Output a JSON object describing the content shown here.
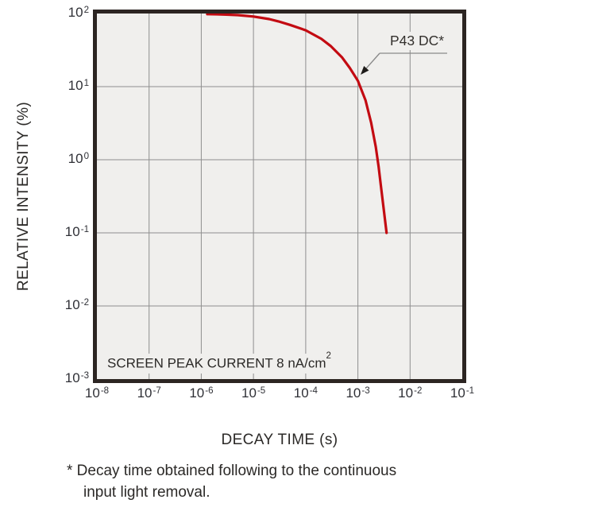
{
  "chart_data": {
    "type": "line",
    "title": "",
    "xlabel": "DECAY TIME (s)",
    "ylabel": "RELATIVE INTENSITY (%)",
    "x_scale": "log",
    "y_scale": "log",
    "xlim": [
      1e-08,
      0.1
    ],
    "ylim": [
      0.001,
      100.0
    ],
    "grid": true,
    "x_tick_exponents": [
      -8,
      -7,
      -6,
      -5,
      -4,
      -3,
      -2,
      -1
    ],
    "y_tick_exponents": [
      2,
      1,
      0,
      -1,
      -2,
      -3
    ],
    "inset_label": {
      "text": "SCREEN PEAK CURRENT 8 nA/cm",
      "sup": "2"
    },
    "annotation": {
      "label": "P43 DC*"
    },
    "series": [
      {
        "name": "P43 DC*",
        "color": "#c30b12",
        "points": [
          [
            1.3e-06,
            98
          ],
          [
            2e-06,
            97.5
          ],
          [
            3e-06,
            96.5
          ],
          [
            5e-06,
            95
          ],
          [
            1e-05,
            91
          ],
          [
            2e-05,
            84
          ],
          [
            3e-05,
            78
          ],
          [
            5e-05,
            70
          ],
          [
            0.0001,
            59
          ],
          [
            0.0002,
            45
          ],
          [
            0.0003,
            36
          ],
          [
            0.0005,
            25
          ],
          [
            0.0007,
            18
          ],
          [
            0.001,
            12
          ],
          [
            0.0014,
            6.5
          ],
          [
            0.0018,
            3.2
          ],
          [
            0.0022,
            1.5
          ],
          [
            0.0025,
            0.8
          ],
          [
            0.0028,
            0.4
          ],
          [
            0.0031,
            0.22
          ],
          [
            0.00355,
            0.1
          ]
        ]
      }
    ],
    "colors": {
      "curve": "#c30b12",
      "frame": "#2c2522",
      "plot_bg": "#f0efed",
      "grid": "#8e8e8e",
      "text": "#2f2d2b",
      "leader": "#8a8a8a",
      "arrow": "#1e1b19"
    }
  },
  "footnote": {
    "line1": "* Decay time obtained following to the continuous",
    "line2": "input light removal."
  }
}
